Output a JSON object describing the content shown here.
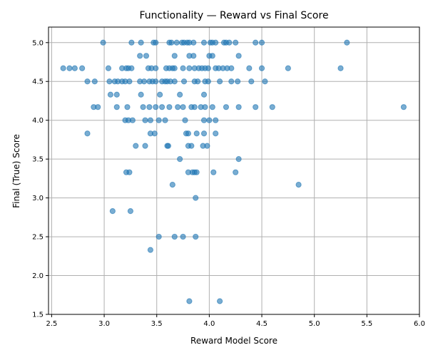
{
  "chart_data": {
    "type": "scatter",
    "title": "Functionality — Reward vs Final Score",
    "xlabel": "Reward Model Score",
    "ylabel": "Final (True) Score",
    "xlim": [
      2.47,
      6.0
    ],
    "ylim": [
      1.5,
      5.2
    ],
    "xticks": [
      2.5,
      3.0,
      3.5,
      4.0,
      4.5,
      5.0,
      5.5,
      6.0
    ],
    "xtick_labels": [
      "2.5",
      "3.0",
      "3.5",
      "4.0",
      "4.5",
      "5.0",
      "5.5",
      "6.0"
    ],
    "yticks": [
      1.5,
      2.0,
      2.5,
      3.0,
      3.5,
      4.0,
      4.5,
      5.0
    ],
    "ytick_labels": [
      "1.5",
      "2.0",
      "2.5",
      "3.0",
      "3.5",
      "4.0",
      "4.5",
      "5.0"
    ],
    "grid": true,
    "marker_color": "#1f77b4",
    "marker_alpha": 0.6,
    "points": [
      [
        2.99,
        5.0
      ],
      [
        3.26,
        5.0
      ],
      [
        3.35,
        5.0
      ],
      [
        3.47,
        5.0
      ],
      [
        3.49,
        5.0
      ],
      [
        3.62,
        5.0
      ],
      [
        3.64,
        5.0
      ],
      [
        3.69,
        5.0
      ],
      [
        3.74,
        5.0
      ],
      [
        3.76,
        5.0
      ],
      [
        3.79,
        5.0
      ],
      [
        3.81,
        5.0
      ],
      [
        3.85,
        5.0
      ],
      [
        3.95,
        5.0
      ],
      [
        4.01,
        5.0
      ],
      [
        4.03,
        5.0
      ],
      [
        4.06,
        5.0
      ],
      [
        4.14,
        5.0
      ],
      [
        4.16,
        5.0
      ],
      [
        4.19,
        5.0
      ],
      [
        4.25,
        5.0
      ],
      [
        4.44,
        5.0
      ],
      [
        4.5,
        5.0
      ],
      [
        5.31,
        5.0
      ],
      [
        3.34,
        4.83
      ],
      [
        3.4,
        4.83
      ],
      [
        3.67,
        4.83
      ],
      [
        3.81,
        4.83
      ],
      [
        3.85,
        4.83
      ],
      [
        4.0,
        4.83
      ],
      [
        4.03,
        4.83
      ],
      [
        4.28,
        4.83
      ],
      [
        2.61,
        4.67
      ],
      [
        2.67,
        4.67
      ],
      [
        2.72,
        4.67
      ],
      [
        2.79,
        4.67
      ],
      [
        3.04,
        4.67
      ],
      [
        3.17,
        4.67
      ],
      [
        3.21,
        4.67
      ],
      [
        3.23,
        4.67
      ],
      [
        3.26,
        4.67
      ],
      [
        3.42,
        4.67
      ],
      [
        3.45,
        4.67
      ],
      [
        3.49,
        4.67
      ],
      [
        3.59,
        4.67
      ],
      [
        3.62,
        4.67
      ],
      [
        3.65,
        4.67
      ],
      [
        3.67,
        4.67
      ],
      [
        3.75,
        4.67
      ],
      [
        3.81,
        4.67
      ],
      [
        3.86,
        4.67
      ],
      [
        3.9,
        4.67
      ],
      [
        3.93,
        4.67
      ],
      [
        3.96,
        4.67
      ],
      [
        3.99,
        4.67
      ],
      [
        4.06,
        4.67
      ],
      [
        4.09,
        4.67
      ],
      [
        4.13,
        4.67
      ],
      [
        4.17,
        4.67
      ],
      [
        4.21,
        4.67
      ],
      [
        4.38,
        4.67
      ],
      [
        4.5,
        4.67
      ],
      [
        4.75,
        4.67
      ],
      [
        5.25,
        4.67
      ],
      [
        2.84,
        4.5
      ],
      [
        2.91,
        4.5
      ],
      [
        3.05,
        4.5
      ],
      [
        3.1,
        4.5
      ],
      [
        3.13,
        4.5
      ],
      [
        3.17,
        4.5
      ],
      [
        3.2,
        4.5
      ],
      [
        3.24,
        4.5
      ],
      [
        3.34,
        4.5
      ],
      [
        3.38,
        4.5
      ],
      [
        3.43,
        4.5
      ],
      [
        3.46,
        4.5
      ],
      [
        3.49,
        4.5
      ],
      [
        3.55,
        4.5
      ],
      [
        3.58,
        4.5
      ],
      [
        3.6,
        4.5
      ],
      [
        3.63,
        4.5
      ],
      [
        3.67,
        4.5
      ],
      [
        3.76,
        4.5
      ],
      [
        3.86,
        4.5
      ],
      [
        3.89,
        4.5
      ],
      [
        3.96,
        4.5
      ],
      [
        3.99,
        4.5
      ],
      [
        4.1,
        4.5
      ],
      [
        4.21,
        4.5
      ],
      [
        4.27,
        4.5
      ],
      [
        4.4,
        4.5
      ],
      [
        4.53,
        4.5
      ],
      [
        3.06,
        4.33
      ],
      [
        3.12,
        4.33
      ],
      [
        3.35,
        4.33
      ],
      [
        3.53,
        4.33
      ],
      [
        3.72,
        4.33
      ],
      [
        3.95,
        4.33
      ],
      [
        2.9,
        4.17
      ],
      [
        2.94,
        4.17
      ],
      [
        3.12,
        4.17
      ],
      [
        3.22,
        4.17
      ],
      [
        3.37,
        4.17
      ],
      [
        3.43,
        4.17
      ],
      [
        3.49,
        4.17
      ],
      [
        3.55,
        4.17
      ],
      [
        3.62,
        4.17
      ],
      [
        3.7,
        4.17
      ],
      [
        3.75,
        4.17
      ],
      [
        3.83,
        4.17
      ],
      [
        3.86,
        4.17
      ],
      [
        3.92,
        4.17
      ],
      [
        3.96,
        4.17
      ],
      [
        4.03,
        4.17
      ],
      [
        4.16,
        4.17
      ],
      [
        4.28,
        4.17
      ],
      [
        4.44,
        4.17
      ],
      [
        4.6,
        4.17
      ],
      [
        5.85,
        4.17
      ],
      [
        3.2,
        4.0
      ],
      [
        3.23,
        4.0
      ],
      [
        3.27,
        4.0
      ],
      [
        3.39,
        4.0
      ],
      [
        3.44,
        4.0
      ],
      [
        3.52,
        4.0
      ],
      [
        3.58,
        4.0
      ],
      [
        3.77,
        4.0
      ],
      [
        3.95,
        4.0
      ],
      [
        4.0,
        4.0
      ],
      [
        4.06,
        4.0
      ],
      [
        2.84,
        3.83
      ],
      [
        3.44,
        3.83
      ],
      [
        3.48,
        3.83
      ],
      [
        3.78,
        3.83
      ],
      [
        3.8,
        3.83
      ],
      [
        3.88,
        3.83
      ],
      [
        3.95,
        3.83
      ],
      [
        4.06,
        3.83
      ],
      [
        3.3,
        3.67
      ],
      [
        3.39,
        3.67
      ],
      [
        3.6,
        3.67
      ],
      [
        3.61,
        3.67
      ],
      [
        3.8,
        3.67
      ],
      [
        3.83,
        3.67
      ],
      [
        3.94,
        3.67
      ],
      [
        3.98,
        3.67
      ],
      [
        3.72,
        3.5
      ],
      [
        4.28,
        3.5
      ],
      [
        3.21,
        3.33
      ],
      [
        3.24,
        3.33
      ],
      [
        3.8,
        3.33
      ],
      [
        3.84,
        3.33
      ],
      [
        3.86,
        3.33
      ],
      [
        3.88,
        3.33
      ],
      [
        4.04,
        3.33
      ],
      [
        4.25,
        3.33
      ],
      [
        3.65,
        3.17
      ],
      [
        4.85,
        3.17
      ],
      [
        3.87,
        3.0
      ],
      [
        3.08,
        2.83
      ],
      [
        3.25,
        2.83
      ],
      [
        3.52,
        2.5
      ],
      [
        3.67,
        2.5
      ],
      [
        3.75,
        2.5
      ],
      [
        3.87,
        2.5
      ],
      [
        3.44,
        2.33
      ],
      [
        3.81,
        1.67
      ],
      [
        4.1,
        1.67
      ]
    ]
  }
}
